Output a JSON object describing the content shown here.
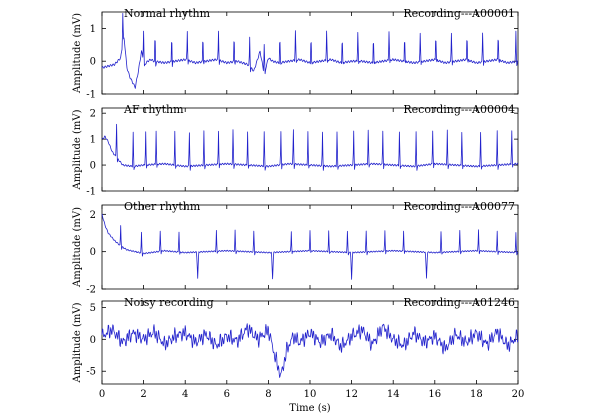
{
  "colors": {
    "trace": "#2222cc",
    "axis": "#000000"
  },
  "chart_data": {
    "type": "line",
    "xlabel": "Time (s)",
    "xlim": [
      0,
      20
    ],
    "xticks": [
      0,
      2,
      4,
      6,
      8,
      10,
      12,
      14,
      16,
      18,
      20
    ],
    "panels": [
      {
        "title": "Normal rhythm",
        "recording": "Recording---A00001",
        "ylabel": "Amplitude (mV)",
        "ylim": [
          -1,
          1.5
        ],
        "yticks": [
          -1,
          0,
          1
        ],
        "series": [
          {
            "x": [
              0,
              0.3,
              0.6,
              0.9,
              1.05,
              1.2,
              1.35,
              1.6,
              1.75,
              1.9,
              2.05,
              2.2,
              2.35,
              2.5,
              3.0,
              3.5,
              4.0,
              4.5,
              5.0,
              5.5,
              6.0,
              6.5,
              7.0,
              7.3,
              7.6,
              7.8,
              8.0,
              8.2,
              8.5,
              9.0,
              9.5,
              10.0,
              10.5,
              11.0,
              11.5,
              12.0,
              12.5,
              13.0,
              13.5,
              14.0,
              14.5,
              15.0,
              15.5,
              16.0,
              16.5,
              17.0,
              17.5,
              18.0,
              18.5,
              19.0,
              19.5,
              20.0
            ],
            "y": [
              -0.2,
              -0.15,
              -0.1,
              0.1,
              0.8,
              -0.2,
              -0.5,
              -0.8,
              -0.3,
              0.3,
              -0.1,
              0.0,
              0.05,
              0.0,
              -0.05,
              0.0,
              0.05,
              -0.05,
              0.0,
              0.05,
              -0.05,
              0.0,
              -0.1,
              -0.3,
              0.3,
              -0.4,
              0.1,
              0.0,
              -0.05,
              0.0,
              0.05,
              -0.05,
              0.0,
              0.05,
              -0.05,
              0.0,
              0.0,
              -0.05,
              0.0,
              0.05,
              0.0,
              -0.05,
              0.0,
              0.05,
              -0.05,
              0.0,
              0.05,
              -0.05,
              0.0,
              0.05,
              -0.05,
              0.0
            ]
          }
        ],
        "beats_s": [
          1.0,
          2.0,
          2.55,
          3.35,
          4.1,
          4.85,
          5.6,
          6.35,
          7.1,
          7.8,
          8.55,
          9.3,
          10.05,
          10.8,
          11.55,
          12.3,
          13.05,
          13.8,
          14.55,
          15.3,
          16.05,
          16.8,
          17.55,
          18.3,
          19.05,
          19.9
        ],
        "beat_peak_mV": 0.9
      },
      {
        "title": "AF rhythm",
        "recording": "Recording---A00004",
        "ylabel": "Amplitude (mV)",
        "ylim": [
          -1,
          2.2
        ],
        "yticks": [
          -1,
          0,
          1,
          2
        ],
        "series": [
          {
            "x": [
              0,
              0.15,
              0.3,
              0.5,
              0.8,
              1.0,
              1.5,
              2.0,
              3.0,
              4.0,
              5.0,
              6.0,
              7.0,
              8.0,
              9.0,
              10.0,
              11.0,
              12.0,
              13.0,
              14.0,
              15.0,
              16.0,
              17.0,
              18.0,
              19.0,
              20.0
            ],
            "y": [
              1.0,
              1.1,
              0.9,
              0.5,
              0.2,
              0.0,
              -0.05,
              0.0,
              0.05,
              -0.05,
              0.0,
              0.05,
              0.0,
              -0.05,
              0.05,
              0.0,
              -0.05,
              0.0,
              0.05,
              0.0,
              -0.05,
              0.05,
              0.0,
              -0.05,
              0.0,
              0.05
            ]
          }
        ],
        "beats_s": [
          0.7,
          1.5,
          2.1,
          2.6,
          3.5,
          4.2,
          4.9,
          5.6,
          6.3,
          7.0,
          7.8,
          8.6,
          9.2,
          9.9,
          10.6,
          11.3,
          12.1,
          12.8,
          13.5,
          14.3,
          15.1,
          15.9,
          16.6,
          17.3,
          18.2,
          19.0,
          19.7
        ],
        "beat_peak_mV": 1.3
      },
      {
        "title": "Other rhythm",
        "recording": "Recording---A00077",
        "ylabel": "Amplitude (mV)",
        "ylim": [
          -2,
          2.5
        ],
        "yticks": [
          -2,
          0,
          2
        ],
        "series": [
          {
            "x": [
              0,
              0.15,
              0.3,
              0.6,
              0.9,
              1.2,
              1.6,
              2.0,
              3.0,
              4.0,
              5.0,
              6.0,
              7.0,
              8.0,
              9.0,
              10.0,
              11.0,
              12.0,
              13.0,
              14.0,
              15.0,
              16.0,
              17.0,
              18.0,
              19.0,
              20.0
            ],
            "y": [
              2.0,
              1.4,
              1.0,
              0.6,
              0.3,
              0.1,
              0.0,
              -0.1,
              0.05,
              -0.05,
              0.0,
              0.05,
              0.0,
              -0.05,
              0.0,
              0.05,
              0.0,
              -0.05,
              0.0,
              0.05,
              0.0,
              -0.05,
              0.0,
              0.05,
              0.0,
              -0.05
            ]
          }
        ],
        "beats_s": [
          0.9,
          1.9,
          2.8,
          3.7,
          5.5,
          6.4,
          7.3,
          9.1,
          10.0,
          10.9,
          11.8,
          12.7,
          13.6,
          14.5,
          16.3,
          17.2,
          18.1,
          19.0,
          19.9
        ],
        "beat_peak_mV": 1.1,
        "ectopic_s": [
          4.6,
          8.2,
          12.0,
          15.6
        ],
        "ectopic_low_mV": -1.4
      },
      {
        "title": "Noisy recording",
        "recording": "Recording---A01246",
        "ylabel": "Amplitude (mV)",
        "ylim": [
          -7,
          6
        ],
        "yticks": [
          -5,
          0,
          5
        ],
        "series": [
          {
            "x": [
              0,
              0.5,
              1.0,
              1.5,
              2.0,
              2.5,
              3.0,
              3.5,
              4.0,
              4.5,
              5.0,
              5.5,
              6.0,
              6.5,
              7.0,
              7.5,
              8.0,
              8.3,
              8.6,
              8.9,
              9.2,
              9.5,
              10.0,
              10.5,
              11.0,
              11.5,
              12.0,
              12.5,
              13.0,
              13.5,
              14.0,
              14.5,
              15.0,
              15.5,
              16.0,
              16.5,
              17.0,
              17.5,
              18.0,
              18.5,
              19.0,
              19.5,
              20.0
            ],
            "y": [
              0.5,
              1.5,
              -0.5,
              1.0,
              0.0,
              1.2,
              -0.8,
              0.5,
              1.0,
              -0.5,
              0.8,
              -1.0,
              0.5,
              -0.3,
              1.8,
              0.0,
              1.5,
              -2.5,
              -5.8,
              -1.5,
              0.5,
              -0.5,
              1.0,
              -0.5,
              0.8,
              -1.2,
              0.5,
              1.5,
              -0.8,
              2.0,
              0.0,
              -1.0,
              1.0,
              -0.5,
              0.5,
              -1.5,
              0.8,
              -0.5,
              1.0,
              -0.8,
              1.2,
              -1.0,
              0.5
            ]
          }
        ]
      }
    ]
  }
}
